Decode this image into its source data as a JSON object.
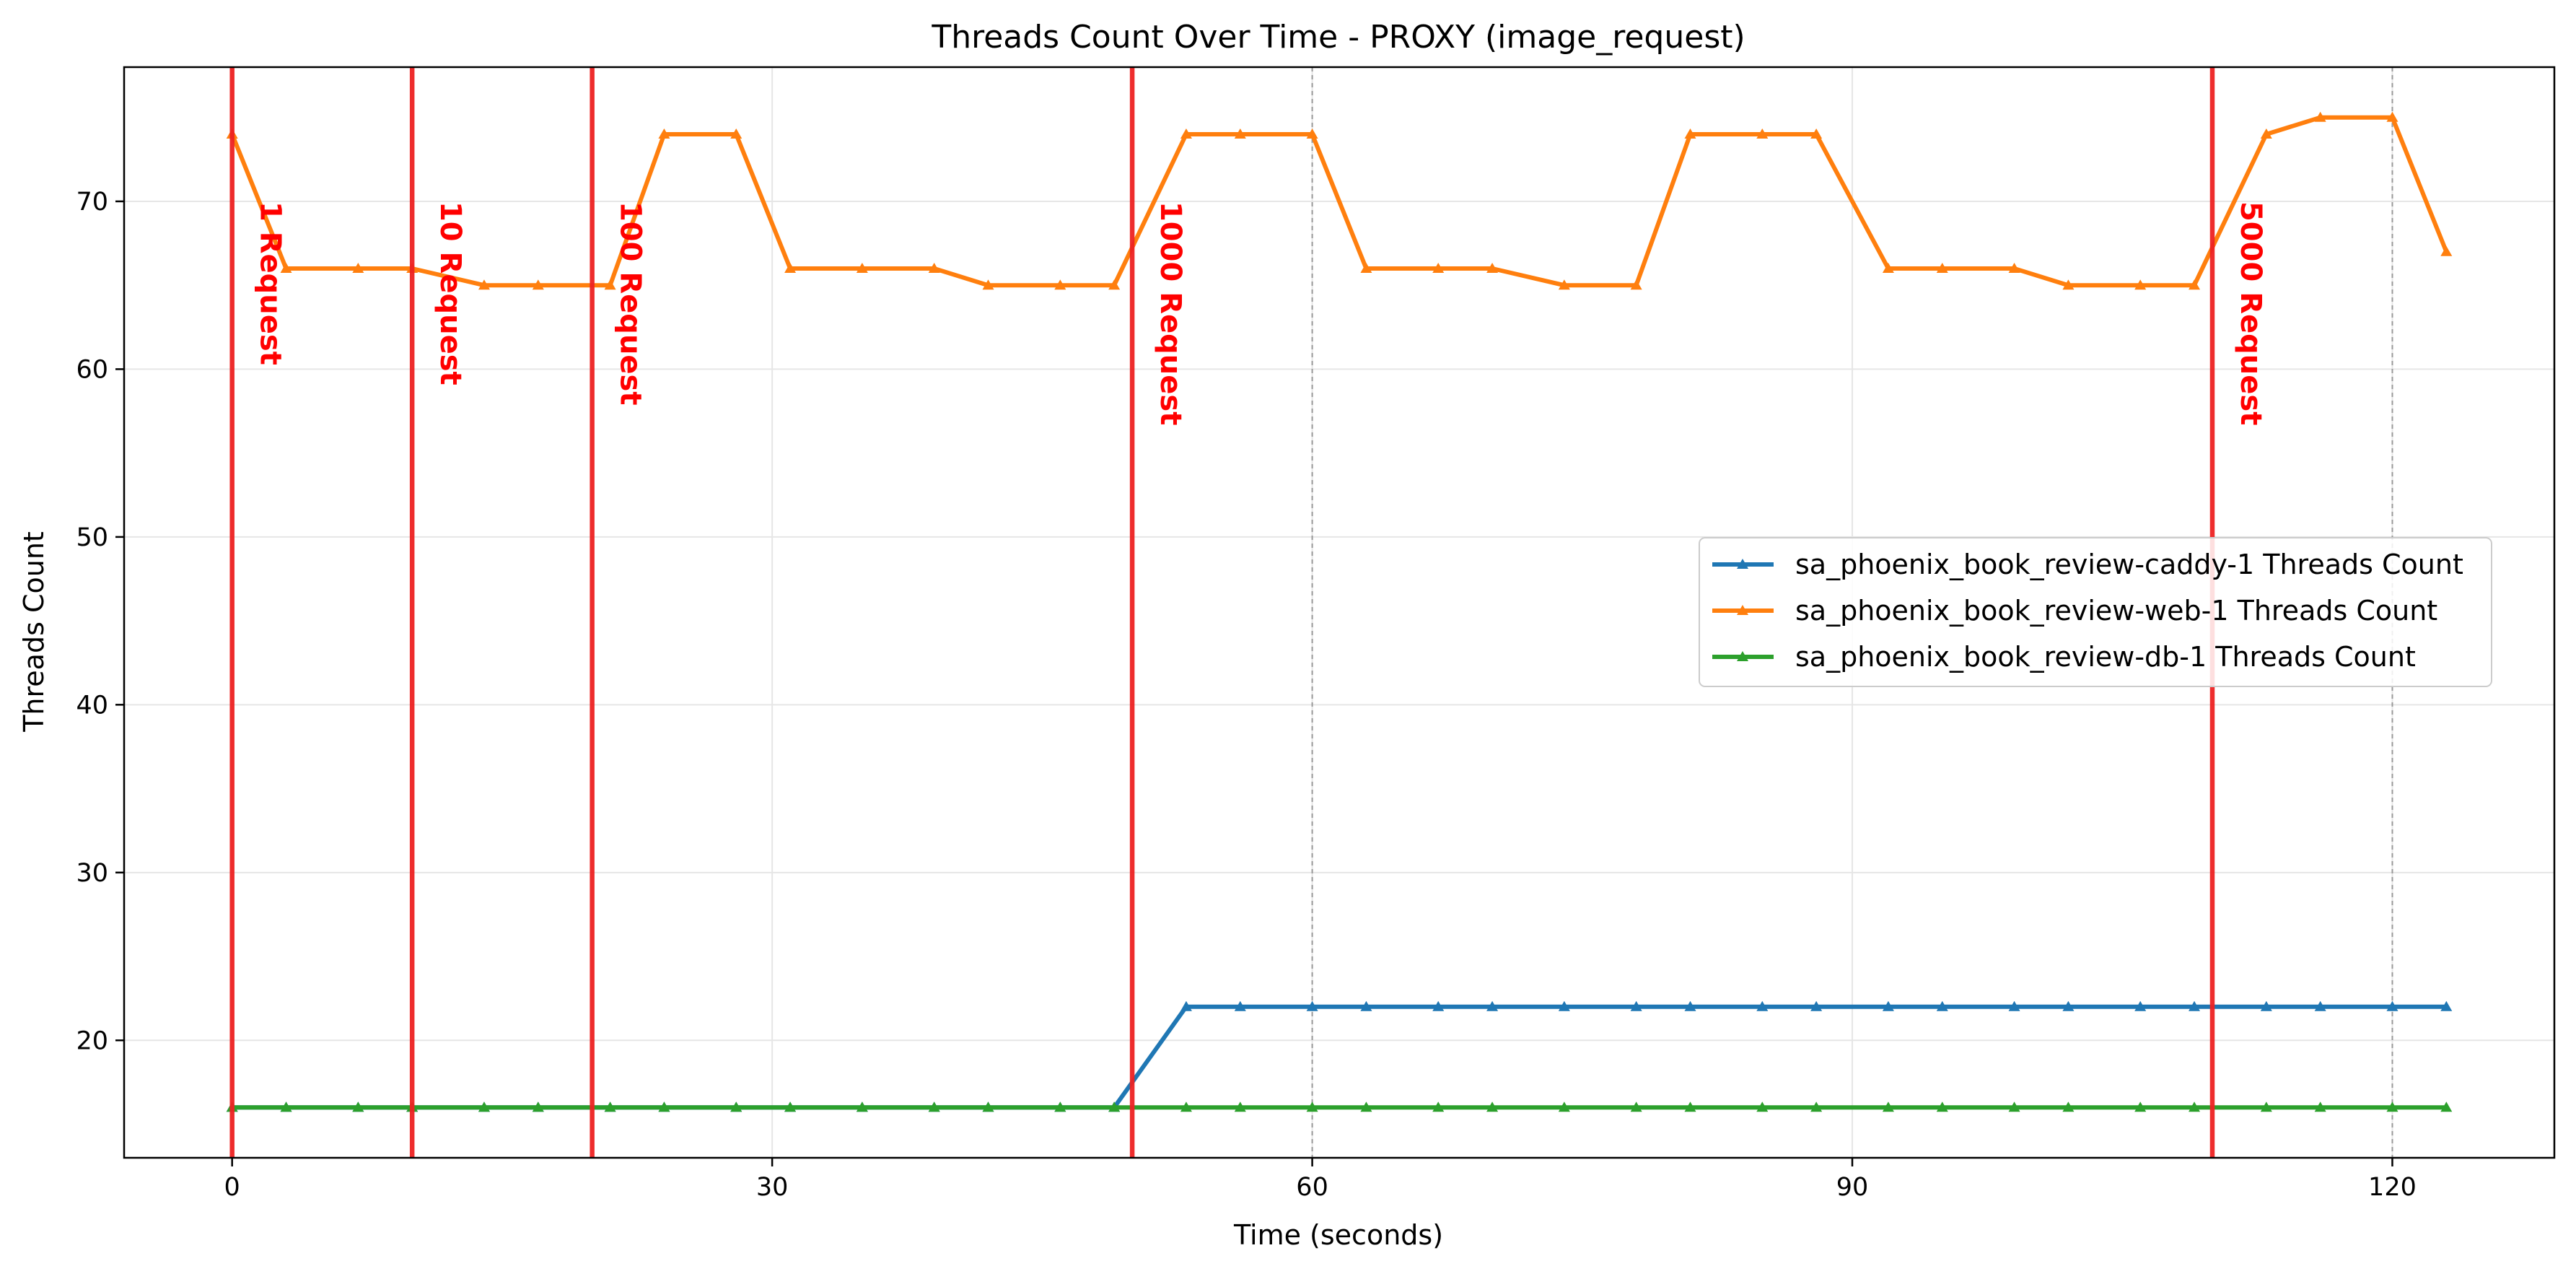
{
  "chart_data": {
    "type": "line",
    "title": "Threads Count Over Time - PROXY (image_request)",
    "xlabel": "Time (seconds)",
    "ylabel": "Threads Count",
    "xlim": [
      -6,
      129
    ],
    "ylim": [
      13,
      78
    ],
    "x_ticks": [
      0,
      30,
      60,
      90,
      120
    ],
    "y_ticks": [
      20,
      30,
      40,
      50,
      60,
      70
    ],
    "grid": true,
    "legend_position": "center-right",
    "x": [
      0,
      3,
      7,
      10,
      14,
      17,
      21,
      24,
      28,
      31,
      35,
      39,
      42,
      46,
      49,
      53,
      56,
      60,
      63,
      67,
      70,
      74,
      78,
      81,
      85,
      88,
      92,
      95,
      99,
      102,
      106,
      109,
      113,
      116,
      120,
      123
    ],
    "series": [
      {
        "name": "sa_phoenix_book_review-caddy-1 Threads Count",
        "color": "#1f77b4",
        "values": [
          16,
          16,
          16,
          16,
          16,
          16,
          16,
          16,
          16,
          16,
          16,
          16,
          16,
          16,
          16,
          22,
          22,
          22,
          22,
          22,
          22,
          22,
          22,
          22,
          22,
          22,
          22,
          22,
          22,
          22,
          22,
          22,
          22,
          22,
          22,
          22
        ]
      },
      {
        "name": "sa_phoenix_book_review-web-1 Threads Count",
        "color": "#ff7f0e",
        "values": [
          74,
          66,
          66,
          66,
          65,
          65,
          65,
          74,
          74,
          66,
          66,
          66,
          65,
          65,
          65,
          74,
          74,
          74,
          66,
          66,
          66,
          65,
          65,
          74,
          74,
          74,
          66,
          66,
          66,
          65,
          65,
          65,
          74,
          75,
          75,
          67
        ]
      },
      {
        "name": "sa_phoenix_book_review-db-1 Threads Count",
        "color": "#2ca02c",
        "values": [
          16,
          16,
          16,
          16,
          16,
          16,
          16,
          16,
          16,
          16,
          16,
          16,
          16,
          16,
          16,
          16,
          16,
          16,
          16,
          16,
          16,
          16,
          16,
          16,
          16,
          16,
          16,
          16,
          16,
          16,
          16,
          16,
          16,
          16,
          16,
          16
        ]
      }
    ],
    "markers": [
      {
        "x": 0,
        "label": "1 Request"
      },
      {
        "x": 10,
        "label": "10 Request"
      },
      {
        "x": 20,
        "label": "100 Request"
      },
      {
        "x": 50,
        "label": "1000 Request"
      },
      {
        "x": 110,
        "label": "5000 Request"
      }
    ],
    "dashed_vlines": [
      60,
      120
    ],
    "marker_color": "#ee2222"
  }
}
